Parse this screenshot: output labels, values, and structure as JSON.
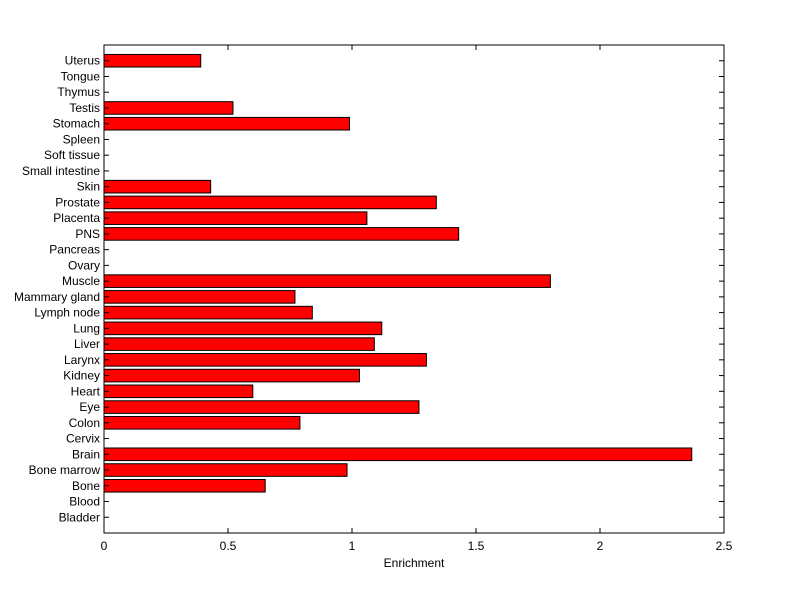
{
  "chart_data": {
    "type": "bar",
    "orientation": "horizontal",
    "title": "",
    "xlabel": "Enrichment",
    "ylabel": "",
    "xlim": [
      0,
      2.5
    ],
    "x_ticks": [
      0,
      0.5,
      1,
      1.5,
      2,
      2.5
    ],
    "x_tick_labels": [
      "0",
      "0.5",
      "1",
      "1.5",
      "2",
      "2.5"
    ],
    "grid": false,
    "legend": "none",
    "bar_color": "#ff0000",
    "bar_edge_color": "#000000",
    "categories": [
      "Bladder",
      "Blood",
      "Bone",
      "Bone marrow",
      "Brain",
      "Cervix",
      "Colon",
      "Eye",
      "Heart",
      "Kidney",
      "Larynx",
      "Liver",
      "Lung",
      "Lymph node",
      "Mammary gland",
      "Muscle",
      "Ovary",
      "Pancreas",
      "PNS",
      "Placenta",
      "Prostate",
      "Skin",
      "Small intestine",
      "Soft tissue",
      "Spleen",
      "Stomach",
      "Testis",
      "Thymus",
      "Tongue",
      "Uterus"
    ],
    "values": [
      0,
      0,
      0.65,
      0.98,
      2.37,
      0,
      0.79,
      1.27,
      0.6,
      1.03,
      1.3,
      1.09,
      1.12,
      0.84,
      0.77,
      1.8,
      0,
      0,
      1.43,
      1.06,
      1.34,
      0.43,
      0,
      0,
      0,
      0.99,
      0.52,
      0,
      0,
      0.39
    ]
  }
}
